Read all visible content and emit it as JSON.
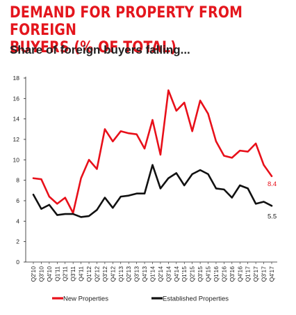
{
  "title": "DEMAND FOR PROPERTY FROM FOREIGN\nBUYERS (% OF TOTAL)",
  "subtitle": "Share of foreign buyers falling...",
  "colors": {
    "title": "#e4161d",
    "new": "#e8101a",
    "established": "#111111"
  },
  "chart_data": {
    "type": "line",
    "title": "DEMAND FOR PROPERTY FROM FOREIGN BUYERS (% OF TOTAL)",
    "subtitle": "Share of foreign buyers falling...",
    "xlabel": "",
    "ylabel": "",
    "ylim": [
      0,
      18
    ],
    "yticks": [
      0,
      2,
      4,
      6,
      8,
      10,
      12,
      14,
      16,
      18
    ],
    "grid": false,
    "legend": "bottom",
    "categories": [
      "Q2'10",
      "Q3'10",
      "Q4'10",
      "Q1'11",
      "Q2'11",
      "Q3'11",
      "Q4'11",
      "Q1'12",
      "Q2'12",
      "Q3'12",
      "Q4'12",
      "Q1'13",
      "Q2'13",
      "Q3'13",
      "Q4'13",
      "Q1'14",
      "Q2'14",
      "Q3'14",
      "Q4'14",
      "Q1'15",
      "Q2'15",
      "Q3'15",
      "Q4'15",
      "Q1'16",
      "Q2'16",
      "Q3'16",
      "Q4'16",
      "Q1'17",
      "Q2'17",
      "Q3'17",
      "Q4'17"
    ],
    "series": [
      {
        "name": "New Properties",
        "color": "#e8101a",
        "values": [
          8.2,
          8.1,
          6.4,
          5.7,
          6.3,
          4.8,
          8.2,
          10.0,
          9.1,
          13.0,
          11.8,
          12.8,
          12.6,
          12.5,
          11.1,
          13.9,
          10.5,
          16.8,
          14.8,
          15.6,
          12.8,
          15.8,
          14.5,
          11.8,
          10.4,
          10.2,
          10.9,
          10.8,
          11.6,
          9.5,
          8.4
        ],
        "end_label": "8.4"
      },
      {
        "name": "Established Properties",
        "color": "#111111",
        "values": [
          6.6,
          5.2,
          5.6,
          4.6,
          4.7,
          4.7,
          4.4,
          4.5,
          5.1,
          6.3,
          5.3,
          6.4,
          6.5,
          6.7,
          6.7,
          9.5,
          7.2,
          8.2,
          8.7,
          7.5,
          8.6,
          9.0,
          8.6,
          7.2,
          7.1,
          6.3,
          7.5,
          7.2,
          5.7,
          5.9,
          5.5
        ],
        "end_label": "5.5"
      }
    ]
  }
}
